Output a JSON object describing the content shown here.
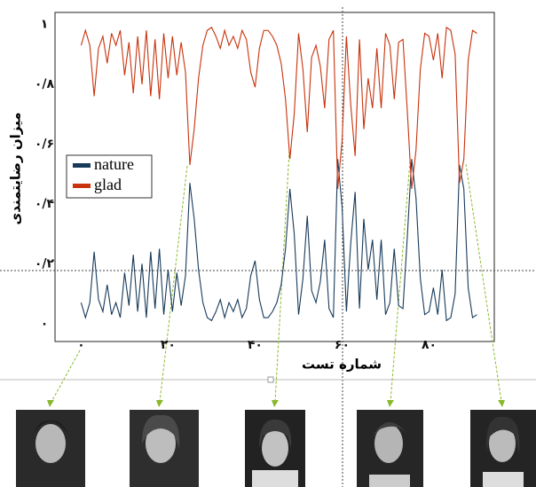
{
  "chart_data": {
    "type": "line",
    "x_label": "شماره تست",
    "y_label": "میزان رضایتمندی",
    "x": [
      0,
      1,
      2,
      3,
      4,
      5,
      6,
      7,
      8,
      9,
      10,
      11,
      12,
      13,
      14,
      15,
      16,
      17,
      18,
      19,
      20,
      21,
      22,
      23,
      24,
      25,
      26,
      27,
      28,
      29,
      30,
      31,
      32,
      33,
      34,
      35,
      36,
      37,
      38,
      39,
      40,
      41,
      42,
      43,
      44,
      45,
      46,
      47,
      48,
      49,
      50,
      51,
      52,
      53,
      54,
      55,
      56,
      57,
      58,
      59,
      60,
      61,
      62,
      63,
      64,
      65,
      66,
      67,
      68,
      69,
      70,
      71,
      72,
      73,
      74,
      75,
      76,
      77,
      78,
      79,
      80,
      81,
      82,
      83,
      84,
      85,
      86,
      87,
      88,
      89,
      90,
      91
    ],
    "series": [
      {
        "name": "nature",
        "color": "#173a5a",
        "values": [
          0.07,
          0.02,
          0.07,
          0.24,
          0.08,
          0.04,
          0.13,
          0.03,
          0.07,
          0.02,
          0.17,
          0.06,
          0.23,
          0.04,
          0.2,
          0.02,
          0.24,
          0.05,
          0.25,
          0.03,
          0.18,
          0.04,
          0.17,
          0.06,
          0.16,
          0.47,
          0.35,
          0.18,
          0.07,
          0.02,
          0.01,
          0.04,
          0.08,
          0.02,
          0.07,
          0.04,
          0.08,
          0.02,
          0.05,
          0.16,
          0.21,
          0.08,
          0.02,
          0.02,
          0.04,
          0.07,
          0.13,
          0.25,
          0.45,
          0.3,
          0.03,
          0.15,
          0.36,
          0.11,
          0.07,
          0.14,
          0.28,
          0.05,
          0.02,
          0.55,
          0.39,
          0.04,
          0.27,
          0.44,
          0.05,
          0.35,
          0.18,
          0.28,
          0.08,
          0.28,
          0.03,
          0.07,
          0.25,
          0.06,
          0.05,
          0.29,
          0.55,
          0.42,
          0.15,
          0.03,
          0.04,
          0.12,
          0.03,
          0.18,
          0.01,
          0.02,
          0.1,
          0.53,
          0.45,
          0.12,
          0.02,
          0.03
        ]
      },
      {
        "name": "glad",
        "color": "#c8320c",
        "values": [
          0.93,
          0.98,
          0.93,
          0.76,
          0.92,
          0.96,
          0.87,
          0.97,
          0.93,
          0.98,
          0.83,
          0.94,
          0.77,
          0.96,
          0.8,
          0.98,
          0.76,
          0.95,
          0.75,
          0.97,
          0.82,
          0.96,
          0.83,
          0.94,
          0.84,
          0.53,
          0.65,
          0.82,
          0.93,
          0.98,
          0.99,
          0.96,
          0.92,
          0.98,
          0.93,
          0.96,
          0.92,
          0.98,
          0.95,
          0.84,
          0.79,
          0.92,
          0.98,
          0.98,
          0.96,
          0.93,
          0.87,
          0.75,
          0.55,
          0.7,
          0.97,
          0.85,
          0.64,
          0.89,
          0.93,
          0.86,
          0.72,
          0.95,
          0.98,
          0.45,
          0.61,
          0.96,
          0.73,
          0.56,
          0.95,
          0.65,
          0.82,
          0.72,
          0.92,
          0.72,
          0.97,
          0.93,
          0.75,
          0.94,
          0.95,
          0.71,
          0.45,
          0.58,
          0.85,
          0.97,
          0.96,
          0.88,
          0.97,
          0.82,
          0.99,
          0.98,
          0.9,
          0.47,
          0.55,
          0.88,
          0.98,
          0.97
        ]
      }
    ],
    "xlim": [
      -6,
      95
    ],
    "ylim": [
      -0.06,
      1.04
    ],
    "xticks": [
      {
        "value": 0,
        "label": "۰"
      },
      {
        "value": 20,
        "label": "۲۰"
      },
      {
        "value": 40,
        "label": "۴۰"
      },
      {
        "value": 60,
        "label": "۶۰"
      },
      {
        "value": 80,
        "label": "۸۰"
      }
    ],
    "yticks": [
      {
        "value": 0,
        "label": "۰"
      },
      {
        "value": 0.2,
        "label": "۰/۲"
      },
      {
        "value": 0.4,
        "label": "۰/۴"
      },
      {
        "value": 0.6,
        "label": "۰/۶"
      },
      {
        "value": 0.8,
        "label": "۰/۸"
      },
      {
        "value": 1,
        "label": "۱"
      }
    ],
    "grid": false,
    "legend": "center-left"
  }
}
